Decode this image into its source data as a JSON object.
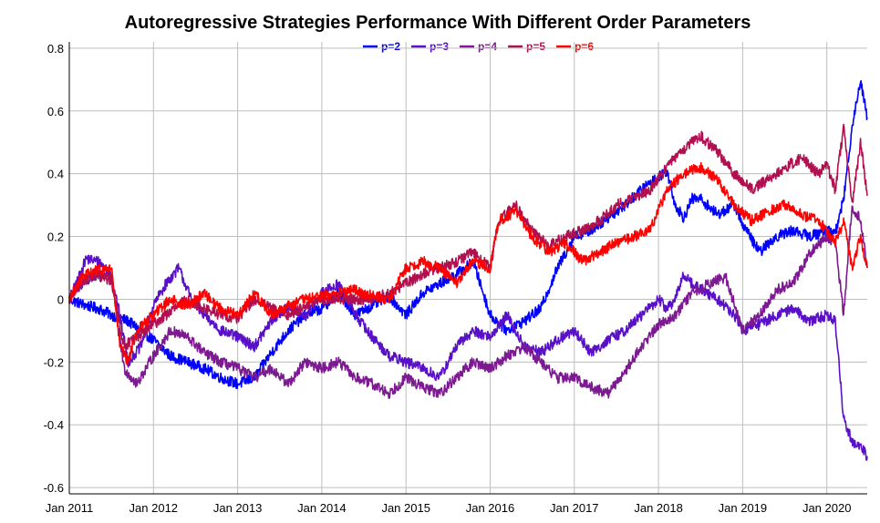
{
  "chart_data": {
    "type": "line",
    "title": "Autoregressive Strategies Performance With Different Order Parameters",
    "xlabel": "",
    "ylabel": "",
    "x_ticks": [
      "Jan 2011",
      "Jan 2012",
      "Jan 2013",
      "Jan 2014",
      "Jan 2015",
      "Jan 2016",
      "Jan 2017",
      "Jan 2018",
      "Jan 2019",
      "Jan 2020"
    ],
    "x_range": [
      2011.0,
      2020.48
    ],
    "y_ticks": [
      "-0.6",
      "-0.4",
      "-0.2",
      "0",
      "0.2",
      "0.4",
      "0.6",
      "0.8"
    ],
    "ylim": [
      -0.62,
      0.82
    ],
    "grid": true,
    "legend_position": "top-center",
    "series": [
      {
        "name": "p=2",
        "color": "#0000ff",
        "x": [
          2011.0,
          2011.2,
          2011.35,
          2011.5,
          2011.7,
          2011.85,
          2012.0,
          2012.2,
          2012.4,
          2012.6,
          2012.8,
          2013.0,
          2013.2,
          2013.4,
          2013.6,
          2013.8,
          2014.0,
          2014.2,
          2014.4,
          2014.6,
          2014.8,
          2015.0,
          2015.2,
          2015.4,
          2015.6,
          2015.8,
          2016.0,
          2016.2,
          2016.4,
          2016.6,
          2016.8,
          2017.0,
          2017.2,
          2017.4,
          2017.6,
          2017.8,
          2018.0,
          2018.1,
          2018.2,
          2018.3,
          2018.4,
          2018.5,
          2018.7,
          2018.9,
          2019.0,
          2019.2,
          2019.4,
          2019.6,
          2019.8,
          2020.0,
          2020.1,
          2020.2,
          2020.3,
          2020.4,
          2020.48
        ],
        "y": [
          0.0,
          -0.02,
          -0.03,
          -0.05,
          -0.07,
          -0.1,
          -0.13,
          -0.18,
          -0.2,
          -0.22,
          -0.25,
          -0.27,
          -0.25,
          -0.17,
          -0.1,
          -0.05,
          -0.03,
          0.02,
          -0.05,
          -0.02,
          0.01,
          -0.05,
          0.02,
          0.05,
          0.08,
          0.12,
          -0.05,
          -0.1,
          -0.07,
          -0.03,
          0.1,
          0.2,
          0.22,
          0.26,
          0.3,
          0.35,
          0.39,
          0.41,
          0.3,
          0.26,
          0.32,
          0.32,
          0.27,
          0.3,
          0.24,
          0.15,
          0.2,
          0.22,
          0.2,
          0.22,
          0.21,
          0.32,
          0.55,
          0.7,
          0.58
        ]
      },
      {
        "name": "p=3",
        "color": "#5a0fc8",
        "x": [
          2011.0,
          2011.1,
          2011.2,
          2011.35,
          2011.5,
          2011.6,
          2011.7,
          2011.85,
          2012.0,
          2012.15,
          2012.3,
          2012.45,
          2012.6,
          2012.8,
          2013.0,
          2013.2,
          2013.4,
          2013.6,
          2013.8,
          2014.0,
          2014.2,
          2014.4,
          2014.6,
          2014.8,
          2015.0,
          2015.2,
          2015.4,
          2015.6,
          2015.8,
          2016.0,
          2016.2,
          2016.4,
          2016.6,
          2016.8,
          2017.0,
          2017.2,
          2017.4,
          2017.6,
          2017.8,
          2018.0,
          2018.1,
          2018.2,
          2018.3,
          2018.4,
          2018.5,
          2018.7,
          2018.9,
          2019.0,
          2019.2,
          2019.4,
          2019.6,
          2019.8,
          2020.0,
          2020.1,
          2020.2,
          2020.3,
          2020.4,
          2020.48
        ],
        "y": [
          0.0,
          0.06,
          0.13,
          0.12,
          0.08,
          -0.05,
          -0.2,
          -0.15,
          -0.02,
          0.05,
          0.1,
          0.0,
          -0.05,
          -0.1,
          -0.12,
          -0.15,
          -0.07,
          -0.02,
          -0.06,
          0.02,
          0.05,
          -0.05,
          -0.12,
          -0.18,
          -0.2,
          -0.22,
          -0.25,
          -0.15,
          -0.1,
          -0.12,
          -0.05,
          -0.15,
          -0.17,
          -0.13,
          -0.1,
          -0.17,
          -0.13,
          -0.1,
          -0.05,
          0.0,
          -0.03,
          0.0,
          0.08,
          0.05,
          0.03,
          0.0,
          -0.05,
          -0.1,
          -0.08,
          -0.05,
          -0.03,
          -0.07,
          -0.05,
          -0.07,
          -0.38,
          -0.45,
          -0.47,
          -0.5
        ]
      },
      {
        "name": "p=4",
        "color": "#7d1a91",
        "x": [
          2011.0,
          2011.15,
          2011.3,
          2011.5,
          2011.65,
          2011.8,
          2012.0,
          2012.2,
          2012.4,
          2012.6,
          2012.8,
          2013.0,
          2013.2,
          2013.4,
          2013.6,
          2013.8,
          2014.0,
          2014.2,
          2014.4,
          2014.6,
          2014.8,
          2015.0,
          2015.2,
          2015.4,
          2015.6,
          2015.8,
          2016.0,
          2016.2,
          2016.4,
          2016.6,
          2016.8,
          2017.0,
          2017.2,
          2017.4,
          2017.6,
          2017.8,
          2018.0,
          2018.2,
          2018.4,
          2018.6,
          2018.8,
          2019.0,
          2019.2,
          2019.4,
          2019.6,
          2019.8,
          2020.0,
          2020.1,
          2020.2,
          2020.3,
          2020.4,
          2020.48
        ],
        "y": [
          0.0,
          0.05,
          0.07,
          0.08,
          -0.22,
          -0.27,
          -0.18,
          -0.1,
          -0.12,
          -0.17,
          -0.2,
          -0.22,
          -0.25,
          -0.22,
          -0.27,
          -0.2,
          -0.22,
          -0.2,
          -0.25,
          -0.27,
          -0.3,
          -0.25,
          -0.28,
          -0.3,
          -0.25,
          -0.2,
          -0.22,
          -0.18,
          -0.15,
          -0.2,
          -0.25,
          -0.25,
          -0.28,
          -0.3,
          -0.23,
          -0.15,
          -0.08,
          -0.05,
          0.02,
          0.05,
          0.07,
          -0.1,
          -0.05,
          0.03,
          0.05,
          0.15,
          0.2,
          0.18,
          -0.05,
          0.3,
          0.25,
          0.1
        ]
      },
      {
        "name": "p=5",
        "color": "#b0104f",
        "x": [
          2011.0,
          2011.15,
          2011.3,
          2011.5,
          2011.65,
          2011.8,
          2012.0,
          2012.2,
          2012.4,
          2012.6,
          2012.8,
          2013.0,
          2013.2,
          2013.4,
          2013.6,
          2013.8,
          2014.0,
          2014.2,
          2014.4,
          2014.6,
          2014.8,
          2015.0,
          2015.2,
          2015.4,
          2015.6,
          2015.8,
          2016.0,
          2016.1,
          2016.3,
          2016.5,
          2016.7,
          2016.9,
          2017.1,
          2017.3,
          2017.5,
          2017.7,
          2017.9,
          2018.1,
          2018.3,
          2018.5,
          2018.7,
          2018.9,
          2019.1,
          2019.3,
          2019.5,
          2019.7,
          2019.9,
          2020.0,
          2020.1,
          2020.2,
          2020.3,
          2020.4,
          2020.48
        ],
        "y": [
          0.0,
          0.06,
          0.08,
          0.06,
          -0.15,
          -0.12,
          -0.08,
          -0.04,
          0.0,
          -0.03,
          -0.05,
          -0.06,
          0.0,
          -0.03,
          -0.05,
          -0.02,
          0.0,
          0.0,
          0.0,
          0.0,
          0.02,
          0.05,
          0.08,
          0.1,
          0.12,
          0.15,
          0.1,
          0.25,
          0.3,
          0.22,
          0.17,
          0.2,
          0.22,
          0.25,
          0.3,
          0.32,
          0.35,
          0.42,
          0.48,
          0.52,
          0.47,
          0.4,
          0.35,
          0.38,
          0.42,
          0.45,
          0.4,
          0.43,
          0.35,
          0.55,
          0.3,
          0.5,
          0.33
        ]
      },
      {
        "name": "p=6",
        "color": "#ff0000",
        "x": [
          2011.0,
          2011.15,
          2011.3,
          2011.5,
          2011.6,
          2011.7,
          2011.8,
          2012.0,
          2012.2,
          2012.4,
          2012.6,
          2012.8,
          2013.0,
          2013.2,
          2013.4,
          2013.6,
          2013.8,
          2014.0,
          2014.2,
          2014.4,
          2014.6,
          2014.8,
          2015.0,
          2015.2,
          2015.4,
          2015.6,
          2015.8,
          2016.0,
          2016.1,
          2016.3,
          2016.5,
          2016.7,
          2016.9,
          2017.1,
          2017.3,
          2017.5,
          2017.7,
          2017.9,
          2018.1,
          2018.3,
          2018.5,
          2018.7,
          2018.9,
          2019.1,
          2019.3,
          2019.5,
          2019.7,
          2019.9,
          2020.0,
          2020.1,
          2020.2,
          2020.3,
          2020.4,
          2020.48
        ],
        "y": [
          0.0,
          0.07,
          0.09,
          0.1,
          -0.15,
          -0.2,
          -0.1,
          -0.05,
          0.0,
          -0.02,
          0.02,
          -0.03,
          -0.05,
          0.02,
          -0.05,
          -0.02,
          0.0,
          0.01,
          0.02,
          0.03,
          0.01,
          0.0,
          0.1,
          0.12,
          0.1,
          0.05,
          0.12,
          0.1,
          0.25,
          0.28,
          0.2,
          0.15,
          0.18,
          0.12,
          0.15,
          0.18,
          0.2,
          0.22,
          0.35,
          0.4,
          0.42,
          0.38,
          0.3,
          0.25,
          0.28,
          0.3,
          0.27,
          0.25,
          0.22,
          0.18,
          0.25,
          0.1,
          0.2,
          0.1
        ]
      }
    ]
  }
}
